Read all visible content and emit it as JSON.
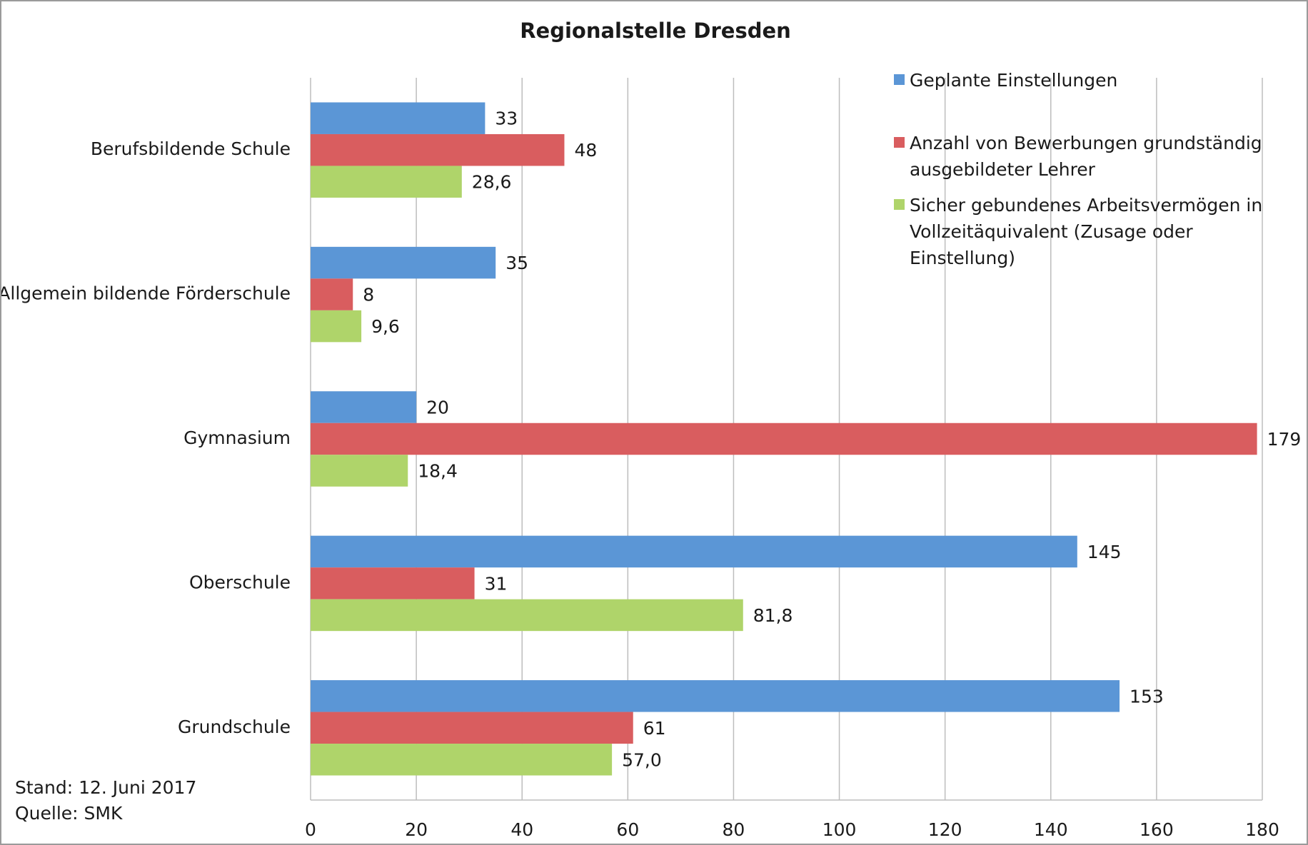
{
  "chart_data": {
    "type": "hbar",
    "title": "Regionalstelle Dresden",
    "categories": [
      "Berufsbildende Schule",
      "Allgemein bildende Förderschule",
      "Gymnasium",
      "Oberschule",
      "Grundschule"
    ],
    "series": [
      {
        "name": "Geplante Einstellungen",
        "color": "#5b96d6",
        "values": [
          33,
          35,
          20,
          145,
          153
        ]
      },
      {
        "name": "Anzahl von Bewerbungen grundständig ausgebildeter Lehrer",
        "color": "#d95d5f",
        "values": [
          48,
          8,
          179,
          31,
          61
        ]
      },
      {
        "name": "Sicher gebundenes Arbeitsvermögen in Vollzeitäquivalent (Zusage oder Einstellung)",
        "color": "#afd46a",
        "values": [
          28.6,
          9.6,
          18.4,
          81.8,
          57.0
        ],
        "value_labels": [
          "28,6",
          "9,6",
          "18,4",
          "81,8",
          "57,0"
        ]
      }
    ],
    "xlim": [
      0,
      180
    ],
    "xticks": [
      0,
      20,
      40,
      60,
      80,
      100,
      120,
      140,
      160,
      180
    ],
    "grid": true,
    "legend": "top-right",
    "annotations": [
      "Stand: 12. Juni 2017",
      "Quelle: SMK"
    ]
  }
}
